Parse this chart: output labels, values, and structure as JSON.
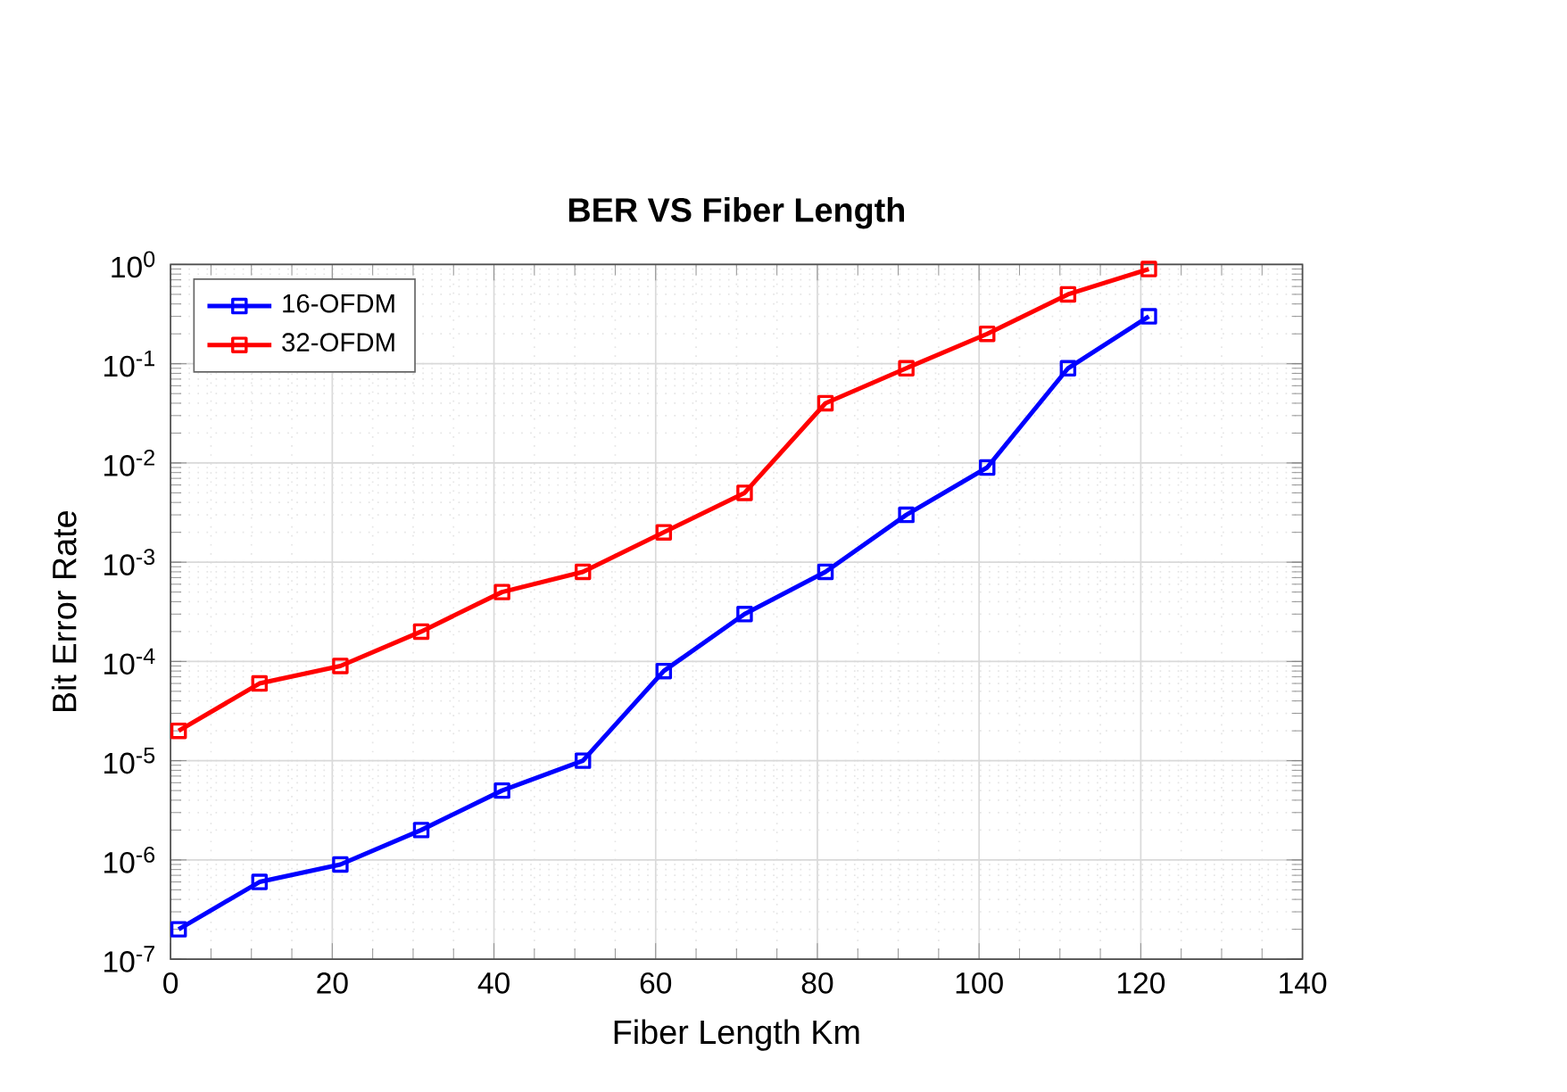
{
  "chart_data": {
    "type": "line",
    "title": "BER VS Fiber Length",
    "xlabel": "Fiber Length Km",
    "ylabel": "Bit Error Rate",
    "x": [
      1,
      11,
      21,
      31,
      41,
      51,
      61,
      71,
      81,
      91,
      101,
      111,
      121
    ],
    "series": [
      {
        "name": "16-OFDM",
        "color": "#0000ff",
        "values": [
          2e-07,
          6e-07,
          9e-07,
          2e-06,
          5e-06,
          1e-05,
          8e-05,
          0.0003,
          0.0008,
          0.003,
          0.009,
          0.09,
          0.3
        ]
      },
      {
        "name": "32-OFDM",
        "color": "#ff0000",
        "values": [
          2e-05,
          6e-05,
          9e-05,
          0.0002,
          0.0005,
          0.0008,
          0.002,
          0.005,
          0.04,
          0.09,
          0.2,
          0.5,
          0.9
        ]
      }
    ],
    "xlim": [
      0,
      140
    ],
    "xticks": [
      0,
      20,
      40,
      60,
      80,
      100,
      120,
      140
    ],
    "ylim": [
      1e-07,
      1
    ],
    "yticks": [
      {
        "value": 1e-07,
        "label": "10$^{-7}$"
      },
      {
        "value": 1e-06,
        "label": "10$^{-6}$"
      },
      {
        "value": 1e-05,
        "label": "10$^{-5}$"
      },
      {
        "value": 0.0001,
        "label": "10$^{-4}$"
      },
      {
        "value": 0.001,
        "label": "10$^{-3}$"
      },
      {
        "value": 0.01,
        "label": "10$^{-2}$"
      },
      {
        "value": 0.1,
        "label": "10$^{-1}$"
      },
      {
        "value": 1,
        "label": "10$^{0}$"
      }
    ],
    "log": "y",
    "grid": true,
    "legend": "top left",
    "marker": "square",
    "line_style": "solid"
  }
}
